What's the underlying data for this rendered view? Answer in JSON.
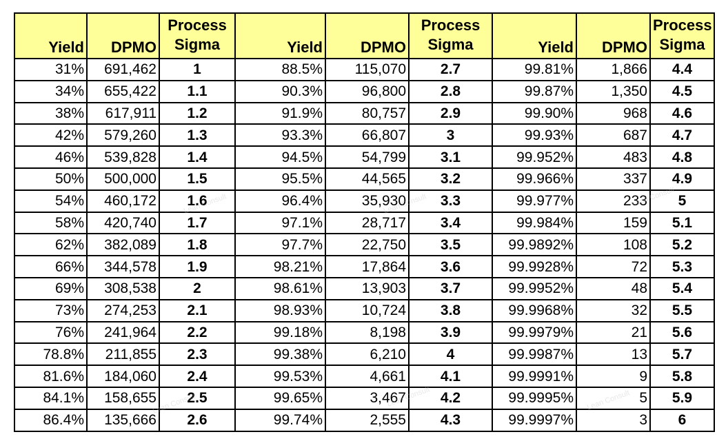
{
  "table": {
    "headers": {
      "yield": "Yield",
      "dpmo": "DPMO",
      "process": "Process",
      "sigma": "Sigma"
    },
    "groups": [
      {
        "rows": [
          {
            "yield": "31%",
            "dpmo": "691,462",
            "sigma": "1"
          },
          {
            "yield": "34%",
            "dpmo": "655,422",
            "sigma": "1.1"
          },
          {
            "yield": "38%",
            "dpmo": "617,911",
            "sigma": "1.2"
          },
          {
            "yield": "42%",
            "dpmo": "579,260",
            "sigma": "1.3"
          },
          {
            "yield": "46%",
            "dpmo": "539,828",
            "sigma": "1.4"
          },
          {
            "yield": "50%",
            "dpmo": "500,000",
            "sigma": "1.5"
          },
          {
            "yield": "54%",
            "dpmo": "460,172",
            "sigma": "1.6"
          },
          {
            "yield": "58%",
            "dpmo": "420,740",
            "sigma": "1.7"
          },
          {
            "yield": "62%",
            "dpmo": "382,089",
            "sigma": "1.8"
          },
          {
            "yield": "66%",
            "dpmo": "344,578",
            "sigma": "1.9"
          },
          {
            "yield": "69%",
            "dpmo": "308,538",
            "sigma": "2"
          },
          {
            "yield": "73%",
            "dpmo": "274,253",
            "sigma": "2.1"
          },
          {
            "yield": "76%",
            "dpmo": "241,964",
            "sigma": "2.2"
          },
          {
            "yield": "78.8%",
            "dpmo": "211,855",
            "sigma": "2.3"
          },
          {
            "yield": "81.6%",
            "dpmo": "184,060",
            "sigma": "2.4"
          },
          {
            "yield": "84.1%",
            "dpmo": "158,655",
            "sigma": "2.5"
          },
          {
            "yield": "86.4%",
            "dpmo": "135,666",
            "sigma": "2.6"
          }
        ]
      },
      {
        "rows": [
          {
            "yield": "88.5%",
            "dpmo": "115,070",
            "sigma": "2.7"
          },
          {
            "yield": "90.3%",
            "dpmo": "96,800",
            "sigma": "2.8"
          },
          {
            "yield": "91.9%",
            "dpmo": "80,757",
            "sigma": "2.9"
          },
          {
            "yield": "93.3%",
            "dpmo": "66,807",
            "sigma": "3"
          },
          {
            "yield": "94.5%",
            "dpmo": "54,799",
            "sigma": "3.1"
          },
          {
            "yield": "95.5%",
            "dpmo": "44,565",
            "sigma": "3.2"
          },
          {
            "yield": "96.4%",
            "dpmo": "35,930",
            "sigma": "3.3"
          },
          {
            "yield": "97.1%",
            "dpmo": "28,717",
            "sigma": "3.4"
          },
          {
            "yield": "97.7%",
            "dpmo": "22,750",
            "sigma": "3.5"
          },
          {
            "yield": "98.21%",
            "dpmo": "17,864",
            "sigma": "3.6"
          },
          {
            "yield": "98.61%",
            "dpmo": "13,903",
            "sigma": "3.7"
          },
          {
            "yield": "98.93%",
            "dpmo": "10,724",
            "sigma": "3.8"
          },
          {
            "yield": "99.18%",
            "dpmo": "8,198",
            "sigma": "3.9"
          },
          {
            "yield": "99.38%",
            "dpmo": "6,210",
            "sigma": "4"
          },
          {
            "yield": "99.53%",
            "dpmo": "4,661",
            "sigma": "4.1"
          },
          {
            "yield": "99.65%",
            "dpmo": "3,467",
            "sigma": "4.2"
          },
          {
            "yield": "99.74%",
            "dpmo": "2,555",
            "sigma": "4.3"
          }
        ]
      },
      {
        "rows": [
          {
            "yield": "99.81%",
            "dpmo": "1,866",
            "sigma": "4.4"
          },
          {
            "yield": "99.87%",
            "dpmo": "1,350",
            "sigma": "4.5"
          },
          {
            "yield": "99.90%",
            "dpmo": "968",
            "sigma": "4.6"
          },
          {
            "yield": "99.93%",
            "dpmo": "687",
            "sigma": "4.7"
          },
          {
            "yield": "99.952%",
            "dpmo": "483",
            "sigma": "4.8"
          },
          {
            "yield": "99.966%",
            "dpmo": "337",
            "sigma": "4.9"
          },
          {
            "yield": "99.977%",
            "dpmo": "233",
            "sigma": "5"
          },
          {
            "yield": "99.984%",
            "dpmo": "159",
            "sigma": "5.1"
          },
          {
            "yield": "99.9892%",
            "dpmo": "108",
            "sigma": "5.2"
          },
          {
            "yield": "99.9928%",
            "dpmo": "72",
            "sigma": "5.3"
          },
          {
            "yield": "99.9952%",
            "dpmo": "48",
            "sigma": "5.4"
          },
          {
            "yield": "99.9968%",
            "dpmo": "32",
            "sigma": "5.5"
          },
          {
            "yield": "99.9979%",
            "dpmo": "21",
            "sigma": "5.6"
          },
          {
            "yield": "99.9987%",
            "dpmo": "13",
            "sigma": "5.7"
          },
          {
            "yield": "99.9991%",
            "dpmo": "9",
            "sigma": "5.8"
          },
          {
            "yield": "99.9995%",
            "dpmo": "5",
            "sigma": "5.9"
          },
          {
            "yield": "99.9997%",
            "dpmo": "3",
            "sigma": "6"
          }
        ]
      }
    ]
  },
  "watermark": {
    "text": "Lean Consult"
  },
  "colors": {
    "header_background": "#ffff99",
    "grid_lines": "#000000"
  }
}
